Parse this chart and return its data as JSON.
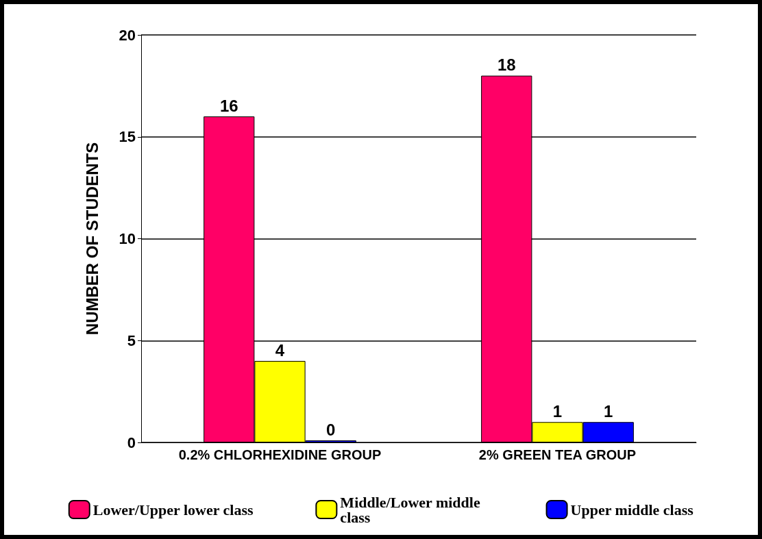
{
  "chart_data": {
    "type": "bar",
    "ylabel": "NUMBER OF STUDENTS",
    "categories": [
      "0.2% CHLORHEXIDINE GROUP",
      "2% GREEN TEA GROUP"
    ],
    "series": [
      {
        "name": "Lower/Upper lower class",
        "color": "#ff0066",
        "values": [
          16,
          18
        ]
      },
      {
        "name": "Middle/Lower middle class",
        "color": "#ffff00",
        "values": [
          4,
          1
        ]
      },
      {
        "name": "Upper middle class",
        "color": "#0000ff",
        "values": [
          0,
          1
        ]
      }
    ],
    "ylim": [
      0,
      20
    ],
    "yticks": [
      0,
      5,
      10,
      15,
      20
    ],
    "grid": "y",
    "legend": "bottom",
    "data_labels": true
  }
}
